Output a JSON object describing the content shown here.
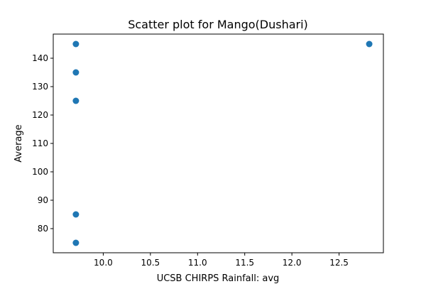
{
  "chart_data": {
    "type": "scatter",
    "title": "Scatter plot for Mango(Dushari)",
    "xlabel": "UCSB CHIRPS Rainfall: avg",
    "ylabel": "Average",
    "xlim": [
      9.47,
      12.97
    ],
    "ylim": [
      71.5,
      148.5
    ],
    "xticks": [
      10.0,
      10.5,
      11.0,
      11.5,
      12.0,
      12.5
    ],
    "xtick_labels": [
      "10.0",
      "10.5",
      "11.0",
      "11.5",
      "12.0",
      "12.5"
    ],
    "yticks": [
      80,
      90,
      100,
      110,
      120,
      130,
      140
    ],
    "ytick_labels": [
      "80",
      "90",
      "100",
      "110",
      "120",
      "130",
      "140"
    ],
    "grid": false,
    "marker_color": "#1f77b4",
    "points": [
      {
        "x": 9.71,
        "y": 145
      },
      {
        "x": 9.71,
        "y": 135
      },
      {
        "x": 9.71,
        "y": 125
      },
      {
        "x": 9.71,
        "y": 85
      },
      {
        "x": 9.71,
        "y": 75
      },
      {
        "x": 12.82,
        "y": 145
      }
    ]
  }
}
